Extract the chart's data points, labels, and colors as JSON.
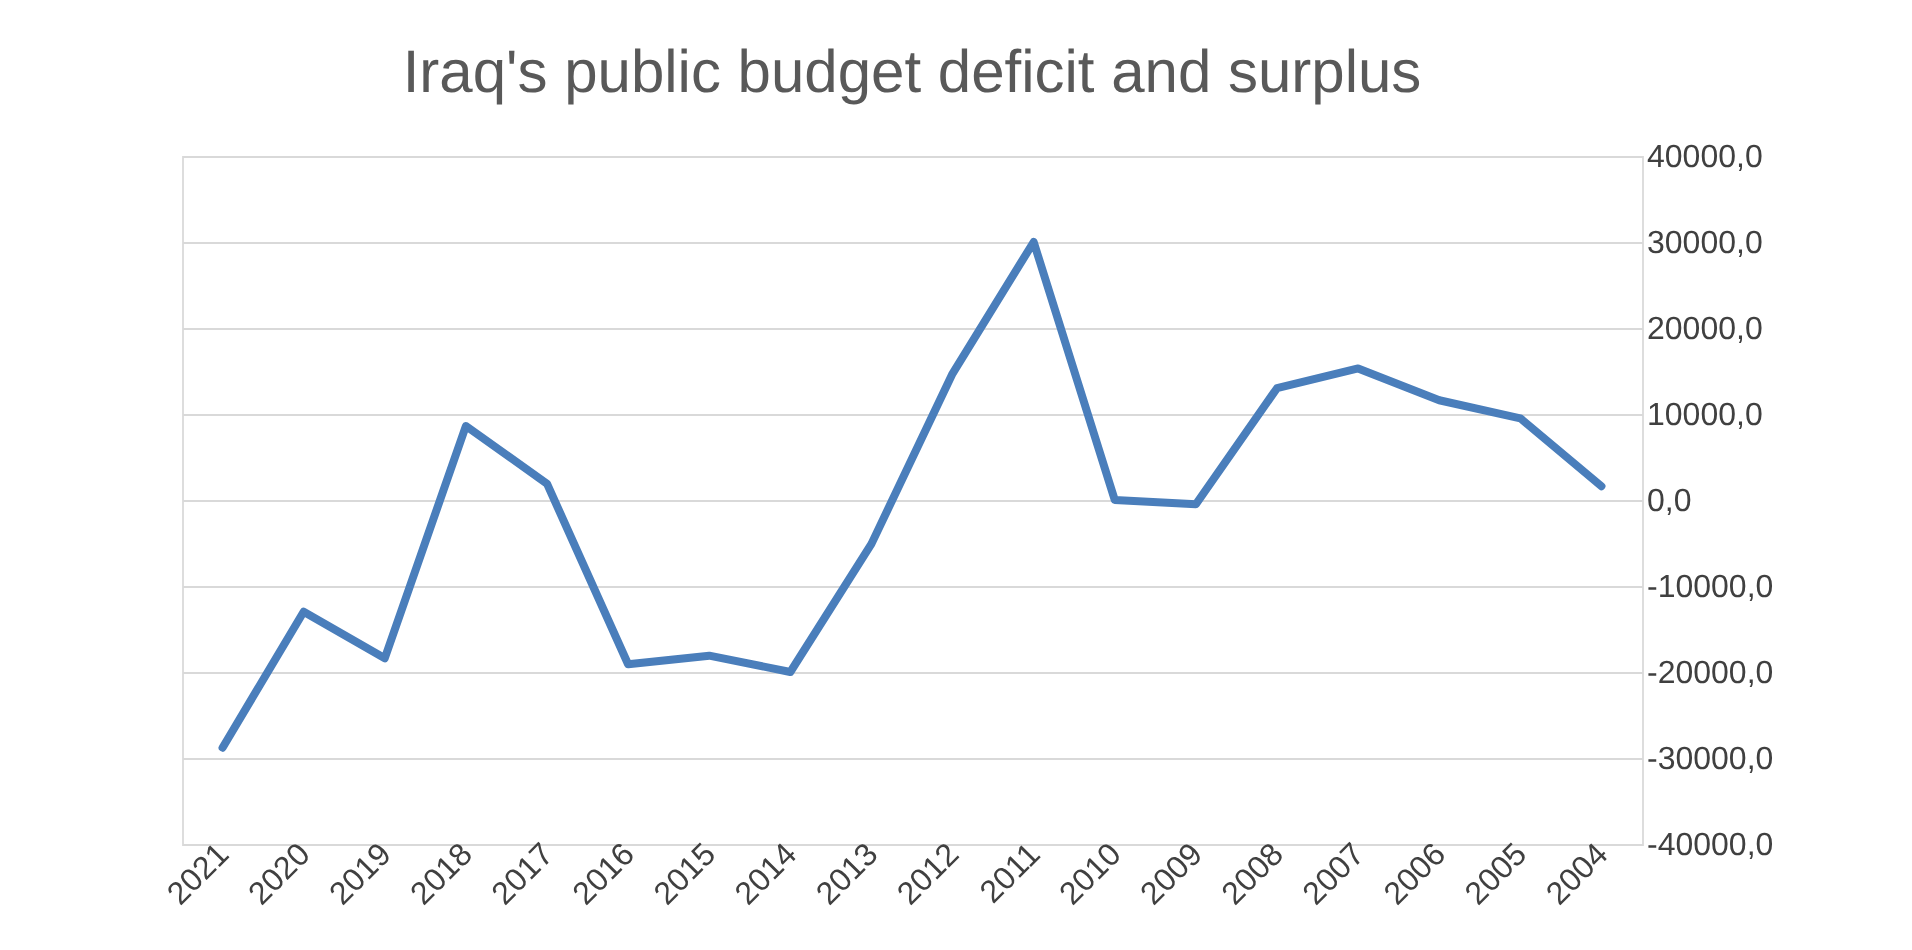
{
  "chart_data": {
    "type": "line",
    "title": "Iraq's public budget deficit and surplus",
    "categories": [
      "2021",
      "2020",
      "2019",
      "2018",
      "2017",
      "2016",
      "2015",
      "2014",
      "2013",
      "2012",
      "2011",
      "2010",
      "2009",
      "2008",
      "2007",
      "2006",
      "2005",
      "2004"
    ],
    "series": [
      {
        "color": "#4a7ebb",
        "values": [
          -28800,
          -13000,
          -18400,
          8600,
          1900,
          -19100,
          -18100,
          -20000,
          -5100,
          14700,
          30000,
          0,
          -500,
          13000,
          15300,
          11600,
          9500,
          1600
        ]
      }
    ],
    "ylim": [
      -40000,
      40000
    ],
    "yticks": [
      {
        "value": -40000,
        "label": "-40000,0"
      },
      {
        "value": -30000,
        "label": "-30000,0"
      },
      {
        "value": -20000,
        "label": "-20000,0"
      },
      {
        "value": -10000,
        "label": "-10000,0"
      },
      {
        "value": 0,
        "label": "0,0"
      },
      {
        "value": 10000,
        "label": "10000,0"
      },
      {
        "value": 20000,
        "label": "20000,0"
      },
      {
        "value": 30000,
        "label": "30000,0"
      },
      {
        "value": 40000,
        "label": "40000,0"
      }
    ],
    "grid": "y",
    "legend": false,
    "marker": "none",
    "line_style": "solid"
  }
}
